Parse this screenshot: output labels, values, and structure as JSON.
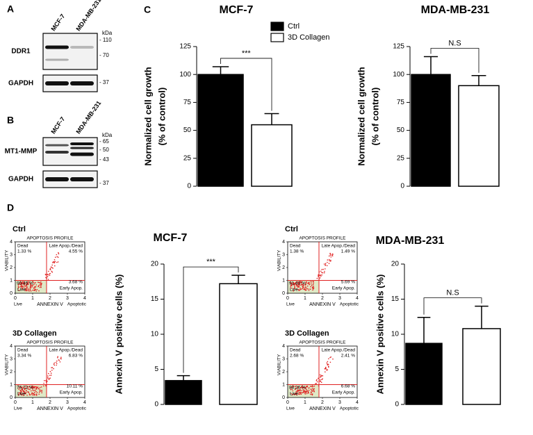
{
  "blots": [
    {
      "panel": "A",
      "lanes": [
        "MCF-7",
        "MDA-MB-231"
      ],
      "unit": "kDa",
      "rows": [
        {
          "label": "DDR1",
          "markers": [
            "- 110",
            "- 70"
          ]
        },
        {
          "label": "GAPDH",
          "markers": [
            "- 37"
          ]
        }
      ]
    },
    {
      "panel": "B",
      "lanes": [
        "MCF-7",
        "MDA-MB-231"
      ],
      "unit": "kDa",
      "rows": [
        {
          "label": "MT1-MMP",
          "markers": [
            "- 65",
            "- 50",
            "- 43"
          ]
        },
        {
          "label": "GAPDH",
          "markers": [
            "- 37"
          ]
        }
      ]
    }
  ],
  "chart_data": [
    {
      "type": "bar",
      "panel": "C",
      "title": "MCF-7",
      "ylabel": [
        "Normalized cell growth",
        "(% of control)"
      ],
      "ylim": [
        0,
        125
      ],
      "yticks": [
        0,
        25,
        50,
        75,
        100,
        125
      ],
      "annotation": "***",
      "series": [
        {
          "name": "Ctrl",
          "color": "#000000",
          "values": [
            100
          ],
          "errors": [
            7
          ]
        },
        {
          "name": "3D Collagen",
          "color": "#ffffff",
          "values": [
            55
          ],
          "errors": [
            10
          ]
        }
      ]
    },
    {
      "type": "bar",
      "title": "MDA-MB-231",
      "ylabel": [
        "Normalized cell growth",
        "(% of control)"
      ],
      "ylim": [
        0,
        125
      ],
      "yticks": [
        0,
        25,
        50,
        75,
        100,
        125
      ],
      "annotation": "N.S",
      "series": [
        {
          "color": "#000000",
          "values": [
            100
          ],
          "errors": [
            16
          ]
        },
        {
          "color": "#ffffff",
          "values": [
            90
          ],
          "errors": [
            9
          ]
        }
      ]
    },
    {
      "type": "bar",
      "title": "MCF-7",
      "ylabel": [
        "Annexin V positive cells (%)"
      ],
      "ylim": [
        0,
        20
      ],
      "yticks": [
        0,
        5,
        10,
        15,
        20
      ],
      "annotation": "***",
      "series": [
        {
          "color": "#000000",
          "values": [
            3.4
          ],
          "errors": [
            0.7
          ]
        },
        {
          "color": "#ffffff",
          "values": [
            17.2
          ],
          "errors": [
            1.2
          ]
        }
      ]
    },
    {
      "type": "bar",
      "title": "MDA-MB-231",
      "ylabel": [
        "Annexin V positive cells (%)"
      ],
      "ylim": [
        0,
        20
      ],
      "yticks": [
        0,
        5,
        10,
        15,
        20
      ],
      "annotation": "N.S",
      "series": [
        {
          "color": "#000000",
          "values": [
            8.7
          ],
          "errors": [
            3.7
          ]
        },
        {
          "color": "#ffffff",
          "values": [
            10.8
          ],
          "errors": [
            3.2
          ]
        }
      ]
    }
  ],
  "apoptosis": {
    "panel": "D",
    "plots": [
      {
        "label": "Ctrl",
        "title": "APOPTOSIS PROFILE",
        "y_label": "VIABILITY",
        "x_label": "ANNEXIN V",
        "x_left": "Live",
        "x_right": "Apoptotic",
        "xticks": [
          0,
          1,
          2,
          3,
          4
        ],
        "yticks": [
          0,
          1,
          2,
          3,
          4
        ],
        "quadrants": {
          "dead_label": "Dead",
          "dead": "1.33 %",
          "late_label": "Late Apop./Dead",
          "late": "4.55 %",
          "early": "3.68 %",
          "early_label": "Early Apop.",
          "live": "90.45 %",
          "live_label": "Live"
        }
      },
      {
        "label": "3D Collagen",
        "title": "APOPTOSIS PROFILE",
        "y_label": "VIABILITY",
        "x_label": "ANNEXIN V",
        "x_left": "Live",
        "x_right": "Apoptotic",
        "xticks": [
          0,
          1,
          2,
          3,
          4
        ],
        "yticks": [
          0,
          1,
          2,
          3,
          4
        ],
        "quadrants": {
          "dead_label": "Dead",
          "dead": "3.34 %",
          "late_label": "Late Apop./Dead",
          "late": "6.83 %",
          "early": "10.11 %",
          "early_label": "Early Apop.",
          "live": "79.72 %",
          "live_label": "Live"
        }
      },
      {
        "label": "Ctrl",
        "title": "APOPTOSIS PROFILE",
        "y_label": "VIABILITY",
        "x_label": "ANNEXIN V",
        "x_left": "Live",
        "x_right": "Apoptotic",
        "xticks": [
          0,
          1,
          2,
          3,
          4
        ],
        "yticks": [
          0,
          1,
          2,
          3,
          4
        ],
        "quadrants": {
          "dead_label": "Dead",
          "dead": "1.38 %",
          "late_label": "Late Apop./Dead",
          "late": "1.49 %",
          "early": "5.69 %",
          "early_label": "Early Apop.",
          "live": "91.43 %",
          "live_label": "Live"
        }
      },
      {
        "label": "3D Collagen",
        "title": "APOPTOSIS PROFILE",
        "y_label": "VIABILITY",
        "x_label": "ANNEXIN V",
        "x_left": "Live",
        "x_right": "Apoptotic",
        "xticks": [
          0,
          1,
          2,
          3,
          4
        ],
        "yticks": [
          0,
          1,
          2,
          3,
          4
        ],
        "quadrants": {
          "dead_label": "Dead",
          "dead": "2.68 %",
          "late_label": "Late Apop./Dead",
          "late": "2.41 %",
          "early": "6.68 %",
          "early_label": "Early Apop.",
          "live": "88.26 %",
          "live_label": "Live"
        }
      }
    ]
  }
}
